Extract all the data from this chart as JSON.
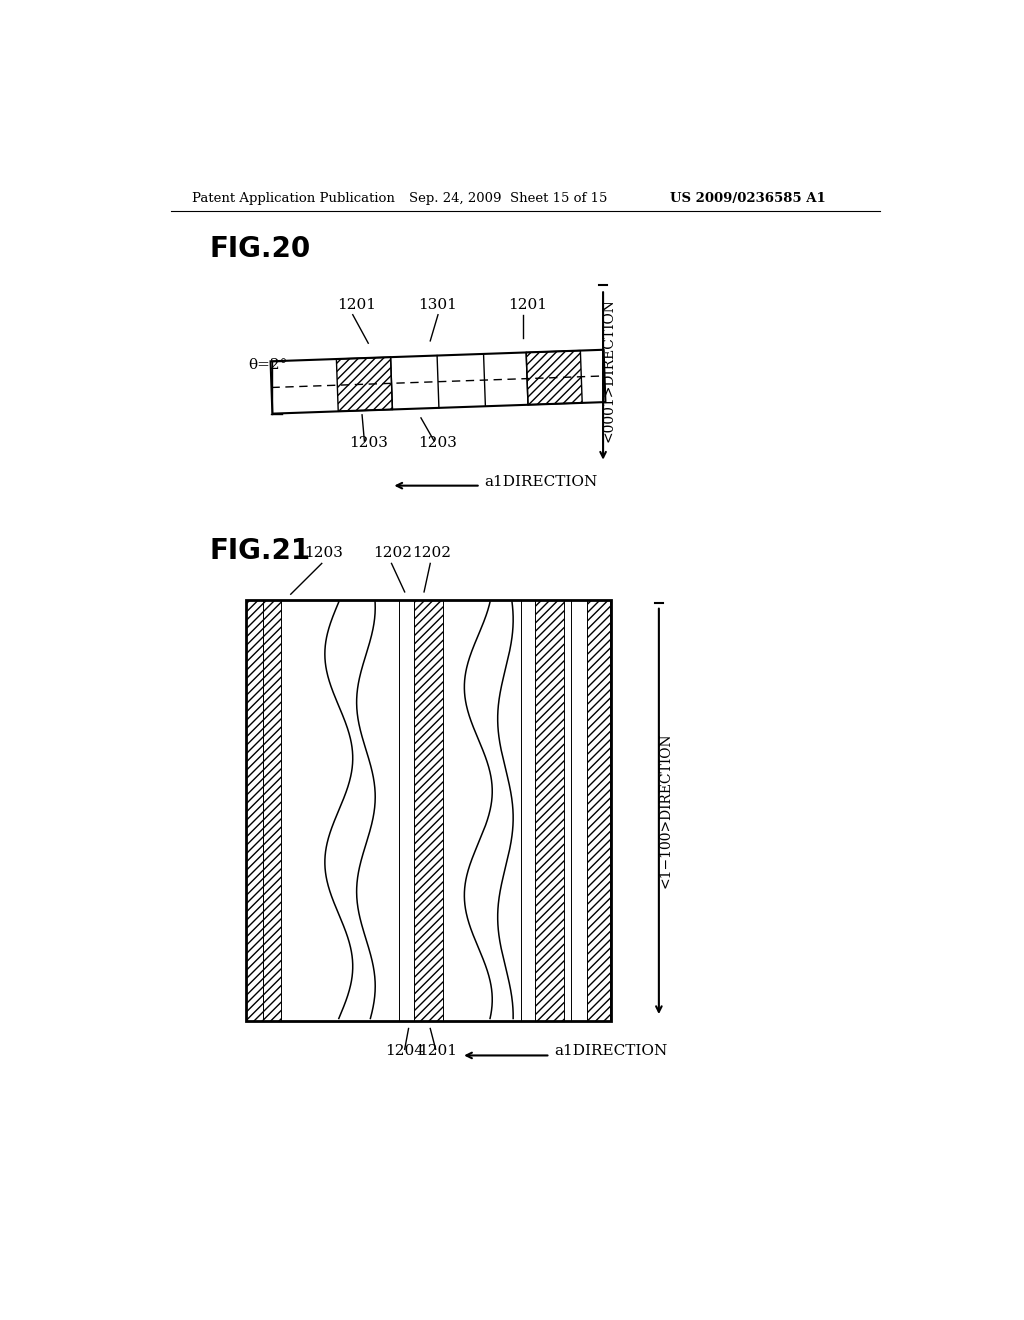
{
  "header_left": "Patent Application Publication",
  "header_mid": "Sep. 24, 2009  Sheet 15 of 15",
  "header_right": "US 2009/0236585 A1",
  "fig20_title": "FIG.20",
  "fig21_title": "FIG.21",
  "background_color": "#ffffff",
  "theta_label": "θ=2°",
  "label_1201": "1201",
  "label_1203": "1203",
  "label_1301": "1301",
  "label_1202": "1202",
  "label_1204": "1204",
  "direction_0001": "<0001>DIRECTION",
  "direction_a1": "a1DIRECTION",
  "direction_1100": "<1−100>DIRECTION"
}
